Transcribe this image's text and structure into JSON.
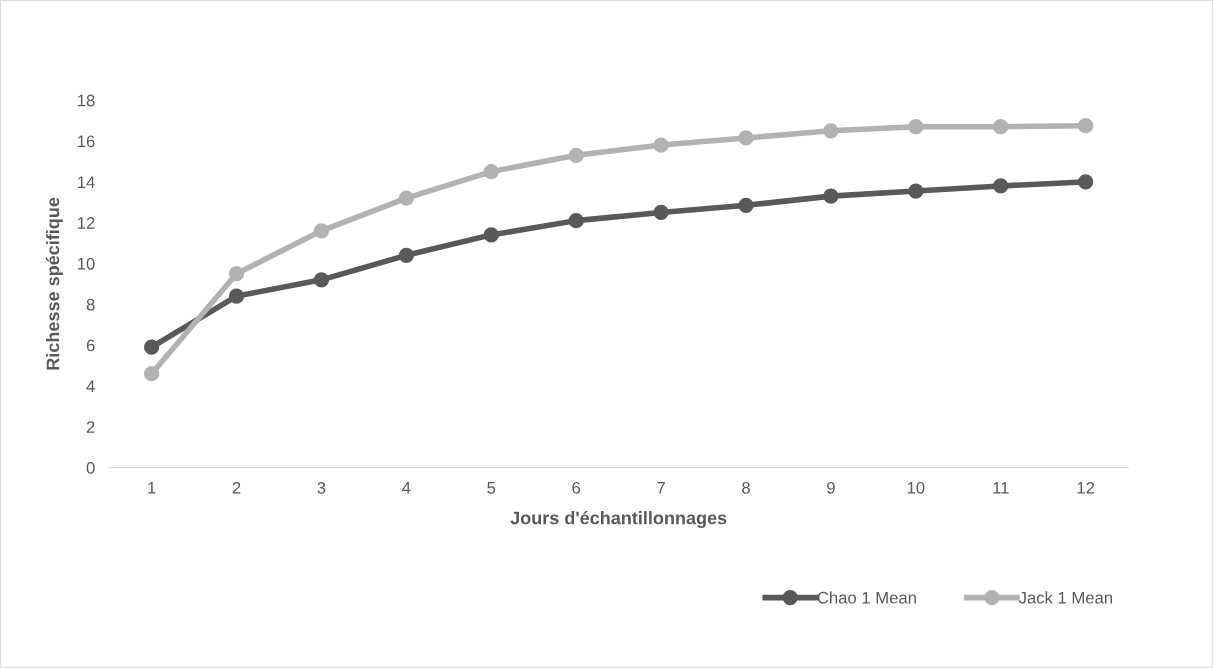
{
  "chart_data": {
    "type": "line",
    "xlabel": "Jours d'échantillonnages",
    "ylabel": "Richesse spécifique",
    "categories": [
      "1",
      "2",
      "3",
      "4",
      "5",
      "6",
      "7",
      "8",
      "9",
      "10",
      "11",
      "12"
    ],
    "series": [
      {
        "name": "Chao 1 Mean",
        "color": "#595959",
        "values": [
          5.9,
          8.4,
          9.2,
          10.4,
          11.4,
          12.1,
          12.5,
          12.85,
          13.3,
          13.55,
          13.8,
          14.0
        ]
      },
      {
        "name": "Jack 1 Mean",
        "color": "#b2b2b2",
        "values": [
          4.6,
          9.5,
          11.6,
          13.2,
          14.5,
          15.3,
          15.8,
          16.15,
          16.5,
          16.7,
          16.7,
          16.75
        ]
      }
    ],
    "ylim": [
      0,
      18
    ],
    "yticks": [
      0,
      2,
      4,
      6,
      8,
      10,
      12,
      14,
      16,
      18
    ],
    "grid": false,
    "legend": "bottom right",
    "marker": "circle",
    "line_style": "solid"
  }
}
